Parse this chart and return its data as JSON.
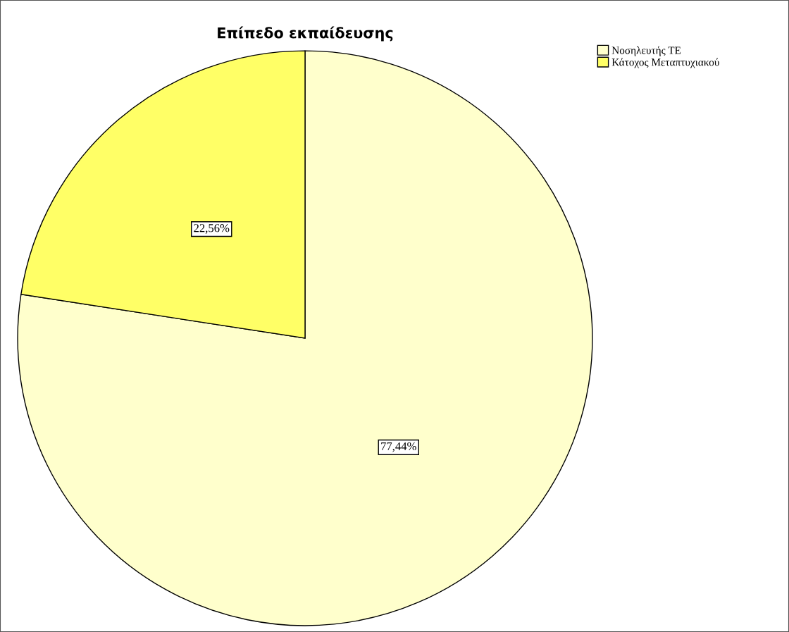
{
  "chart_data": {
    "type": "pie",
    "title": "Επίπεδο εκπαίδευσης",
    "categories": [
      "Νοσηλευτής ΤΕ",
      "Κάτοχος Μεταπτυχιακού"
    ],
    "values": [
      77.44,
      22.56
    ],
    "colors": [
      "#ffffcc",
      "#ffff66"
    ],
    "value_labels": [
      "77,44%",
      "22,56%"
    ],
    "legend": "top right"
  }
}
